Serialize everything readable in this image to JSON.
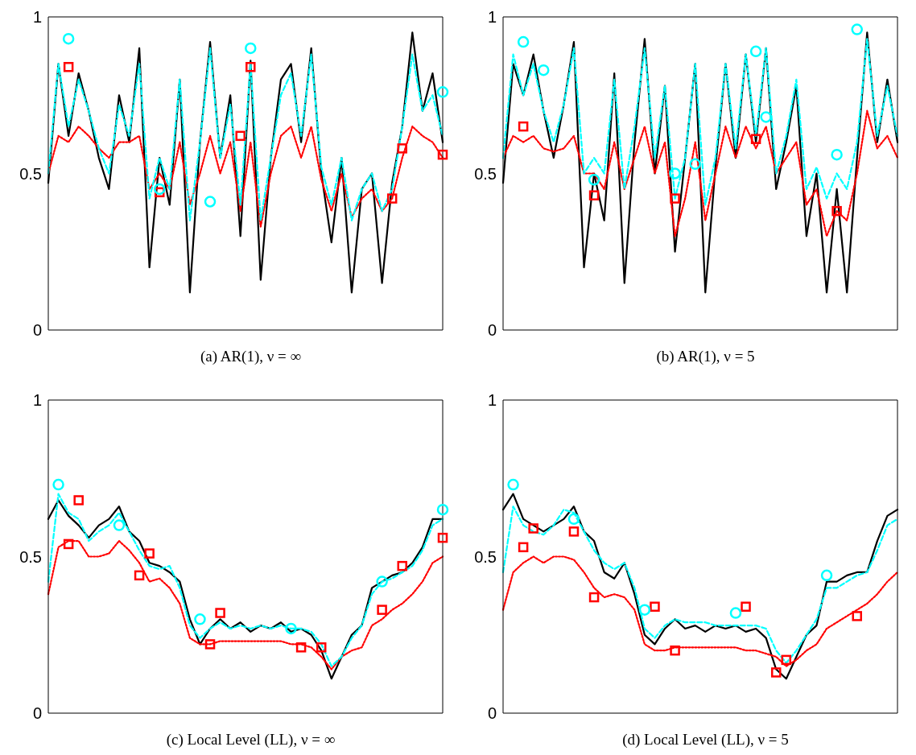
{
  "chart_data": [
    {
      "type": "line",
      "annotations": [
        "(a) AR(1), ν = ∞"
      ],
      "categories": [
        null,
        null,
        null,
        null,
        null,
        null,
        null,
        null,
        null,
        null,
        null,
        null,
        null,
        null,
        null,
        null,
        null,
        null,
        null,
        null,
        null,
        null,
        null,
        null,
        null,
        null,
        null,
        null,
        null,
        null,
        null,
        null,
        null,
        null,
        null,
        null,
        null,
        null,
        null,
        null
      ],
      "ylim": [
        0,
        1
      ],
      "yticks": [
        0,
        0.5,
        1
      ],
      "tick_labels": "y",
      "grid": false,
      "legend": false,
      "series": [
        {
          "color": "#000000",
          "line_style": "solid",
          "marker": "none",
          "values": [
            0.47,
            0.85,
            0.62,
            0.82,
            0.7,
            0.55,
            0.45,
            0.75,
            0.6,
            0.9,
            0.2,
            0.55,
            0.4,
            0.8,
            0.12,
            0.6,
            0.92,
            0.55,
            0.75,
            0.3,
            0.86,
            0.16,
            0.55,
            0.8,
            0.85,
            0.6,
            0.9,
            0.5,
            0.28,
            0.55,
            0.12,
            0.45,
            0.5,
            0.15,
            0.47,
            0.65,
            0.95,
            0.7,
            0.82,
            0.6
          ]
        },
        {
          "color": "#ff0000",
          "line_style": "dotted",
          "marker": "none",
          "values": [
            0.5,
            0.62,
            0.6,
            0.65,
            0.62,
            0.58,
            0.55,
            0.6,
            0.6,
            0.62,
            0.45,
            0.5,
            0.45,
            0.6,
            0.4,
            0.5,
            0.62,
            0.5,
            0.6,
            0.38,
            0.6,
            0.33,
            0.5,
            0.62,
            0.65,
            0.55,
            0.65,
            0.48,
            0.38,
            0.5,
            0.36,
            0.42,
            0.45,
            0.38,
            0.42,
            0.55,
            0.65,
            0.62,
            0.6,
            0.55
          ]
        },
        {
          "color": "#00ffff",
          "line_style": "dashed",
          "marker": "none",
          "values": [
            0.5,
            0.85,
            0.65,
            0.8,
            0.7,
            0.58,
            0.5,
            0.72,
            0.62,
            0.85,
            0.42,
            0.55,
            0.45,
            0.8,
            0.35,
            0.6,
            0.9,
            0.55,
            0.72,
            0.4,
            0.85,
            0.35,
            0.55,
            0.75,
            0.82,
            0.62,
            0.88,
            0.52,
            0.4,
            0.55,
            0.35,
            0.45,
            0.5,
            0.38,
            0.45,
            0.65,
            0.88,
            0.7,
            0.75,
            0.62
          ]
        },
        {
          "type": "scatter",
          "color": "#ff0000",
          "marker": "square",
          "values": [
            null,
            null,
            0.84,
            null,
            null,
            null,
            null,
            null,
            null,
            null,
            null,
            0.44,
            null,
            null,
            null,
            null,
            null,
            null,
            null,
            0.62,
            0.84,
            null,
            null,
            null,
            null,
            null,
            null,
            null,
            null,
            null,
            null,
            null,
            null,
            null,
            0.42,
            0.58,
            null,
            null,
            null,
            0.56
          ]
        },
        {
          "type": "scatter",
          "color": "#00ffff",
          "marker": "circle",
          "values": [
            null,
            null,
            0.93,
            null,
            null,
            null,
            null,
            null,
            null,
            null,
            null,
            0.45,
            null,
            null,
            null,
            null,
            0.41,
            null,
            null,
            null,
            0.9,
            null,
            null,
            null,
            null,
            null,
            null,
            null,
            null,
            null,
            null,
            null,
            null,
            null,
            null,
            null,
            null,
            null,
            null,
            0.76
          ]
        }
      ]
    },
    {
      "type": "line",
      "annotations": [
        "(b) AR(1), ν = 5"
      ],
      "categories": [
        null,
        null,
        null,
        null,
        null,
        null,
        null,
        null,
        null,
        null,
        null,
        null,
        null,
        null,
        null,
        null,
        null,
        null,
        null,
        null,
        null,
        null,
        null,
        null,
        null,
        null,
        null,
        null,
        null,
        null,
        null,
        null,
        null,
        null,
        null,
        null,
        null,
        null,
        null,
        null
      ],
      "ylim": [
        0,
        1
      ],
      "yticks": [
        0,
        0.5,
        1
      ],
      "tick_labels": "y",
      "grid": false,
      "legend": false,
      "series": [
        {
          "color": "#000000",
          "line_style": "solid",
          "marker": "none",
          "values": [
            0.47,
            0.85,
            0.75,
            0.88,
            0.7,
            0.55,
            0.72,
            0.92,
            0.2,
            0.5,
            0.35,
            0.82,
            0.15,
            0.6,
            0.93,
            0.5,
            0.78,
            0.25,
            0.55,
            0.85,
            0.12,
            0.52,
            0.85,
            0.55,
            0.88,
            0.6,
            0.9,
            0.45,
            0.6,
            0.78,
            0.3,
            0.5,
            0.12,
            0.45,
            0.12,
            0.55,
            0.95,
            0.6,
            0.8,
            0.6
          ]
        },
        {
          "color": "#ff0000",
          "line_style": "dotted",
          "marker": "none",
          "values": [
            0.55,
            0.62,
            0.6,
            0.62,
            0.58,
            0.57,
            0.58,
            0.62,
            0.5,
            0.5,
            0.45,
            0.6,
            0.45,
            0.55,
            0.65,
            0.5,
            0.6,
            0.3,
            0.42,
            0.6,
            0.35,
            0.5,
            0.65,
            0.55,
            0.65,
            0.58,
            0.65,
            0.5,
            0.55,
            0.6,
            0.4,
            0.45,
            0.3,
            0.38,
            0.35,
            0.5,
            0.7,
            0.58,
            0.62,
            0.55
          ]
        },
        {
          "color": "#00ffff",
          "line_style": "dashed",
          "marker": "none",
          "values": [
            0.55,
            0.88,
            0.75,
            0.85,
            0.7,
            0.6,
            0.72,
            0.9,
            0.5,
            0.55,
            0.5,
            0.8,
            0.45,
            0.65,
            0.9,
            0.55,
            0.78,
            0.42,
            0.55,
            0.85,
            0.4,
            0.55,
            0.85,
            0.58,
            0.88,
            0.62,
            0.9,
            0.5,
            0.62,
            0.8,
            0.45,
            0.52,
            0.42,
            0.5,
            0.45,
            0.6,
            0.93,
            0.62,
            0.78,
            0.62
          ]
        },
        {
          "type": "scatter",
          "color": "#ff0000",
          "marker": "square",
          "values": [
            null,
            null,
            0.65,
            null,
            null,
            null,
            null,
            null,
            null,
            0.43,
            null,
            null,
            null,
            null,
            null,
            null,
            null,
            0.42,
            null,
            null,
            null,
            null,
            null,
            null,
            null,
            0.61,
            null,
            null,
            null,
            null,
            null,
            null,
            null,
            0.38,
            null,
            null,
            null,
            null,
            null,
            null
          ]
        },
        {
          "type": "scatter",
          "color": "#00ffff",
          "marker": "circle",
          "values": [
            null,
            null,
            0.92,
            null,
            0.83,
            null,
            null,
            null,
            null,
            0.48,
            null,
            null,
            null,
            null,
            null,
            null,
            null,
            0.5,
            null,
            0.53,
            null,
            null,
            null,
            null,
            null,
            0.89,
            0.68,
            null,
            null,
            null,
            null,
            null,
            null,
            0.56,
            null,
            0.96,
            null,
            null,
            null,
            null
          ]
        }
      ]
    },
    {
      "type": "line",
      "annotations": [
        "(c) Local Level (LL), ν = ∞"
      ],
      "categories": [
        null,
        null,
        null,
        null,
        null,
        null,
        null,
        null,
        null,
        null,
        null,
        null,
        null,
        null,
        null,
        null,
        null,
        null,
        null,
        null,
        null,
        null,
        null,
        null,
        null,
        null,
        null,
        null,
        null,
        null,
        null,
        null,
        null,
        null,
        null,
        null,
        null,
        null,
        null,
        null
      ],
      "ylim": [
        0,
        1
      ],
      "yticks": [
        0,
        0.5,
        1
      ],
      "tick_labels": "y",
      "grid": false,
      "legend": false,
      "series": [
        {
          "color": "#000000",
          "line_style": "solid",
          "marker": "none",
          "values": [
            0.62,
            0.68,
            0.63,
            0.6,
            0.56,
            0.6,
            0.62,
            0.66,
            0.58,
            0.55,
            0.48,
            0.47,
            0.45,
            0.42,
            0.3,
            0.22,
            0.27,
            0.3,
            0.27,
            0.29,
            0.26,
            0.28,
            0.27,
            0.29,
            0.26,
            0.27,
            0.25,
            0.2,
            0.11,
            0.18,
            0.25,
            0.28,
            0.4,
            0.42,
            0.44,
            0.45,
            0.48,
            0.53,
            0.62,
            0.62
          ]
        },
        {
          "color": "#ff0000",
          "line_style": "dotted",
          "marker": "none",
          "values": [
            0.38,
            0.53,
            0.55,
            0.55,
            0.5,
            0.5,
            0.51,
            0.55,
            0.52,
            0.48,
            0.42,
            0.43,
            0.4,
            0.35,
            0.24,
            0.22,
            0.22,
            0.23,
            0.23,
            0.23,
            0.23,
            0.23,
            0.23,
            0.23,
            0.22,
            0.22,
            0.21,
            0.18,
            0.14,
            0.18,
            0.2,
            0.21,
            0.28,
            0.3,
            0.33,
            0.35,
            0.38,
            0.42,
            0.48,
            0.5
          ]
        },
        {
          "color": "#00ffff",
          "line_style": "dashed",
          "marker": "none",
          "values": [
            0.42,
            0.7,
            0.64,
            0.62,
            0.55,
            0.58,
            0.6,
            0.64,
            0.58,
            0.52,
            0.47,
            0.46,
            0.47,
            0.4,
            0.28,
            0.24,
            0.27,
            0.29,
            0.27,
            0.28,
            0.27,
            0.28,
            0.27,
            0.28,
            0.27,
            0.27,
            0.26,
            0.22,
            0.15,
            0.18,
            0.24,
            0.28,
            0.38,
            0.42,
            0.43,
            0.45,
            0.47,
            0.52,
            0.6,
            0.62
          ]
        },
        {
          "type": "scatter",
          "color": "#ff0000",
          "marker": "square",
          "values": [
            null,
            null,
            0.54,
            0.68,
            null,
            null,
            null,
            null,
            null,
            0.44,
            0.51,
            null,
            null,
            null,
            null,
            null,
            0.22,
            0.32,
            null,
            null,
            null,
            null,
            null,
            null,
            null,
            0.21,
            null,
            0.21,
            null,
            null,
            null,
            null,
            null,
            0.33,
            null,
            0.47,
            null,
            null,
            null,
            0.56
          ]
        },
        {
          "type": "scatter",
          "color": "#00ffff",
          "marker": "circle",
          "values": [
            null,
            0.73,
            null,
            null,
            null,
            null,
            null,
            0.6,
            null,
            null,
            null,
            null,
            null,
            null,
            null,
            0.3,
            null,
            null,
            null,
            null,
            null,
            null,
            null,
            null,
            0.27,
            null,
            null,
            null,
            null,
            null,
            null,
            null,
            null,
            0.42,
            null,
            null,
            null,
            null,
            null,
            0.65
          ]
        }
      ]
    },
    {
      "type": "line",
      "annotations": [
        "(d) Local Level (LL), ν = 5"
      ],
      "categories": [
        null,
        null,
        null,
        null,
        null,
        null,
        null,
        null,
        null,
        null,
        null,
        null,
        null,
        null,
        null,
        null,
        null,
        null,
        null,
        null,
        null,
        null,
        null,
        null,
        null,
        null,
        null,
        null,
        null,
        null,
        null,
        null,
        null,
        null,
        null,
        null,
        null,
        null,
        null,
        null
      ],
      "ylim": [
        0,
        1
      ],
      "yticks": [
        0,
        0.5,
        1
      ],
      "tick_labels": "y",
      "grid": false,
      "legend": false,
      "series": [
        {
          "color": "#000000",
          "line_style": "solid",
          "marker": "none",
          "values": [
            0.65,
            0.7,
            0.62,
            0.6,
            0.58,
            0.6,
            0.62,
            0.66,
            0.58,
            0.55,
            0.45,
            0.43,
            0.48,
            0.38,
            0.25,
            0.22,
            0.27,
            0.3,
            0.27,
            0.28,
            0.26,
            0.28,
            0.27,
            0.28,
            0.26,
            0.27,
            0.24,
            0.14,
            0.11,
            0.18,
            0.25,
            0.28,
            0.42,
            0.42,
            0.44,
            0.45,
            0.45,
            0.55,
            0.63,
            0.65
          ]
        },
        {
          "color": "#ff0000",
          "line_style": "dotted",
          "marker": "none",
          "values": [
            0.33,
            0.45,
            0.48,
            0.5,
            0.48,
            0.5,
            0.5,
            0.49,
            0.45,
            0.4,
            0.37,
            0.38,
            0.37,
            0.33,
            0.22,
            0.2,
            0.2,
            0.21,
            0.21,
            0.21,
            0.21,
            0.21,
            0.21,
            0.21,
            0.2,
            0.2,
            0.19,
            0.18,
            0.15,
            0.17,
            0.2,
            0.22,
            0.27,
            0.29,
            0.31,
            0.33,
            0.35,
            0.38,
            0.42,
            0.45
          ]
        },
        {
          "color": "#00ffff",
          "line_style": "dashed",
          "marker": "none",
          "values": [
            0.45,
            0.66,
            0.6,
            0.58,
            0.57,
            0.6,
            0.65,
            0.64,
            0.58,
            0.52,
            0.48,
            0.46,
            0.48,
            0.4,
            0.27,
            0.24,
            0.28,
            0.3,
            0.29,
            0.29,
            0.29,
            0.28,
            0.28,
            0.28,
            0.28,
            0.28,
            0.27,
            0.2,
            0.16,
            0.2,
            0.25,
            0.3,
            0.4,
            0.4,
            0.42,
            0.44,
            0.45,
            0.52,
            0.6,
            0.62
          ]
        },
        {
          "type": "scatter",
          "color": "#ff0000",
          "marker": "square",
          "values": [
            null,
            null,
            0.53,
            0.59,
            null,
            null,
            null,
            0.58,
            null,
            0.37,
            null,
            null,
            null,
            null,
            null,
            0.34,
            null,
            0.2,
            null,
            null,
            null,
            null,
            null,
            null,
            0.34,
            null,
            null,
            0.13,
            0.17,
            null,
            null,
            null,
            null,
            null,
            null,
            0.31,
            null,
            null,
            null,
            null
          ]
        },
        {
          "type": "scatter",
          "color": "#00ffff",
          "marker": "circle",
          "values": [
            null,
            0.73,
            null,
            null,
            null,
            null,
            null,
            0.62,
            null,
            null,
            null,
            null,
            null,
            null,
            0.33,
            null,
            null,
            null,
            null,
            null,
            null,
            null,
            null,
            0.32,
            null,
            null,
            null,
            null,
            null,
            null,
            null,
            null,
            0.44,
            null,
            null,
            null,
            null,
            null,
            null,
            null
          ]
        }
      ]
    }
  ]
}
